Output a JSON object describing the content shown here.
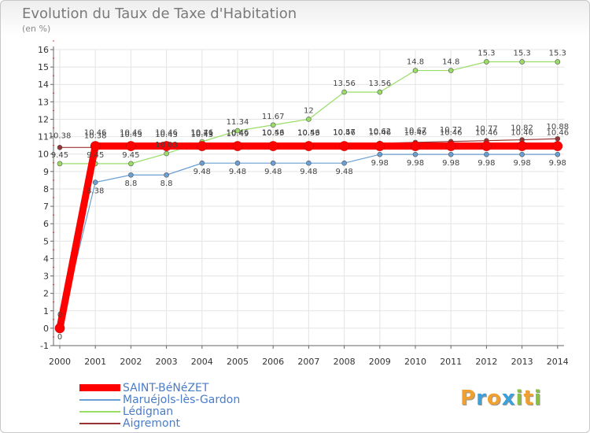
{
  "header": {
    "title": "Evolution du Taux de Taxe d'Habitation",
    "unit": "(en %)"
  },
  "chart_data": {
    "type": "line",
    "title": "Evolution du Taux de Taxe d'Habitation",
    "ylabel": "(en %)",
    "x": [
      "2000",
      "2001",
      "2002",
      "2003",
      "2004",
      "2005",
      "2006",
      "2007",
      "2008",
      "2009",
      "2010",
      "2011",
      "2012",
      "2013",
      "2014"
    ],
    "ylim": [
      -1,
      16
    ],
    "yticks": [
      -1,
      0,
      1,
      2,
      3,
      4,
      5,
      6,
      7,
      8,
      9,
      10,
      11,
      12,
      13,
      14,
      15,
      16
    ],
    "grid": true,
    "legend_position": "bottom-left",
    "series": [
      {
        "name": "SAINT-BéNéZET",
        "color": "#ff0000",
        "values": [
          0,
          10.46,
          10.46,
          10.46,
          10.46,
          10.46,
          10.46,
          10.46,
          10.46,
          10.46,
          10.46,
          10.46,
          10.46,
          10.46,
          10.46
        ],
        "labels": [
          "0",
          "10.46",
          "10.46",
          "10.46",
          "10.46",
          "10.46",
          "10.46",
          "10.46",
          "10.46",
          "10.46",
          "10.46",
          "10.46",
          "10.46",
          "10.46",
          "10.46"
        ]
      },
      {
        "name": "Maruéjols-lès-Gardon",
        "color": "#6a9fd4",
        "values": [
          0,
          8.38,
          8.8,
          8.8,
          9.48,
          9.48,
          9.48,
          9.48,
          9.48,
          9.98,
          9.98,
          9.98,
          9.98,
          9.98,
          9.98
        ],
        "labels": [
          "0",
          "8.38",
          "8.8",
          "8.8",
          "9.48",
          "9.48",
          "9.48",
          "9.48",
          "9.48",
          "9.98",
          "9.98",
          "9.98",
          "9.98",
          "9.98",
          "9.98"
        ]
      },
      {
        "name": "Lédignan",
        "color": "#99dd66",
        "values": [
          9.45,
          9.45,
          9.45,
          10.03,
          10.71,
          11.34,
          11.67,
          12,
          13.56,
          13.56,
          14.8,
          14.8,
          15.3,
          15.3,
          15.3
        ],
        "labels": [
          "9.45",
          "9.45",
          "9.45",
          "10.03",
          "10.71",
          "11.34",
          "11.67",
          "12",
          "13.56",
          "13.56",
          "14.8",
          "14.8",
          "15.3",
          "15.3",
          "15.3"
        ]
      },
      {
        "name": "Aigremont",
        "color": "#993333",
        "values": [
          10.38,
          10.38,
          10.43,
          10.43,
          10.43,
          10.49,
          10.53,
          10.53,
          10.57,
          10.62,
          10.67,
          10.72,
          10.77,
          10.82,
          10.88
        ],
        "labels": [
          "10.38",
          "10.38",
          "10.43",
          "10.43",
          "10.43",
          "10.49",
          "10.53",
          "10.53",
          "10.57",
          "10.62",
          "10.67",
          "10.72",
          "10.77",
          "10.82",
          "10.88"
        ]
      }
    ]
  },
  "brand": {
    "letters": [
      "P",
      "r",
      "o",
      "x",
      "i",
      "t",
      "i"
    ],
    "colors": [
      "#f0a030",
      "#3da0d8",
      "#f0a030",
      "#3da0d8",
      "#88c040",
      "#f0a030",
      "#88c040"
    ]
  }
}
